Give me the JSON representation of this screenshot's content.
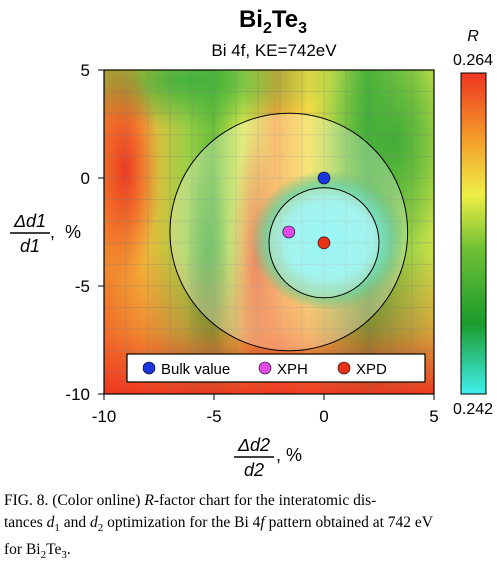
{
  "title": {
    "main": "Bi",
    "sub1": "2",
    "mid": "Te",
    "sub2": "3"
  },
  "subtitle": "Bi 4f, KE=742eV",
  "chart_data": {
    "type": "heatmap",
    "x_label": {
      "top": "Δd2",
      "bottom": "d2",
      "unit": ", %"
    },
    "y_label": {
      "top": "Δd1",
      "bottom": "d1",
      "unit": ",  %"
    },
    "xlim": [
      -10,
      5
    ],
    "ylim": [
      -10,
      5
    ],
    "x_ticks": [
      -10,
      -5,
      0,
      5
    ],
    "y_ticks": [
      5,
      0,
      -5,
      -10
    ],
    "x_tick_labels": [
      "-10",
      "-5",
      "0",
      "5"
    ],
    "y_tick_labels": [
      "5",
      "0",
      "-5",
      "-10"
    ],
    "grid": true,
    "colorbar": {
      "label": "R",
      "max_label": "0.264",
      "min_label": "0.242",
      "max": 0.264,
      "min": 0.242,
      "colors": [
        "#3ff0ee",
        "#1b9a2b",
        "#6ec034",
        "#eeee44",
        "#f39a2a",
        "#ef3520"
      ]
    },
    "points": [
      {
        "name": "Bulk value",
        "x": 0,
        "y": 0,
        "color": "#1a35e0"
      },
      {
        "name": "XPH",
        "x": -1.6,
        "y": -2.5,
        "color": "#e34be8"
      },
      {
        "name": "XPD",
        "x": 0,
        "y": -3,
        "color": "#e83217"
      }
    ],
    "error_circles": [
      {
        "x": -1.6,
        "y": -2.5,
        "r": 5.4
      },
      {
        "x": 0,
        "y": -3,
        "r": 2.5
      }
    ],
    "legend": {
      "placement": "bottom",
      "items": [
        "Bulk value",
        "XPH",
        "XPD"
      ]
    }
  },
  "caption": {
    "lines": [
      [
        "FIG. 8. (Color online) ",
        {
          "i": "R"
        },
        "-factor chart for the interatomic dis-"
      ],
      [
        "tances ",
        {
          "i": "d"
        },
        {
          "sub": "1"
        },
        " and ",
        {
          "i": "d"
        },
        {
          "sub": "2"
        },
        " optimization for the Bi 4",
        {
          "i": "f"
        },
        " pattern obtained at 742 eV"
      ],
      [
        "for Bi",
        {
          "sub": "2"
        },
        "Te",
        {
          "sub": "3"
        },
        "."
      ]
    ]
  }
}
